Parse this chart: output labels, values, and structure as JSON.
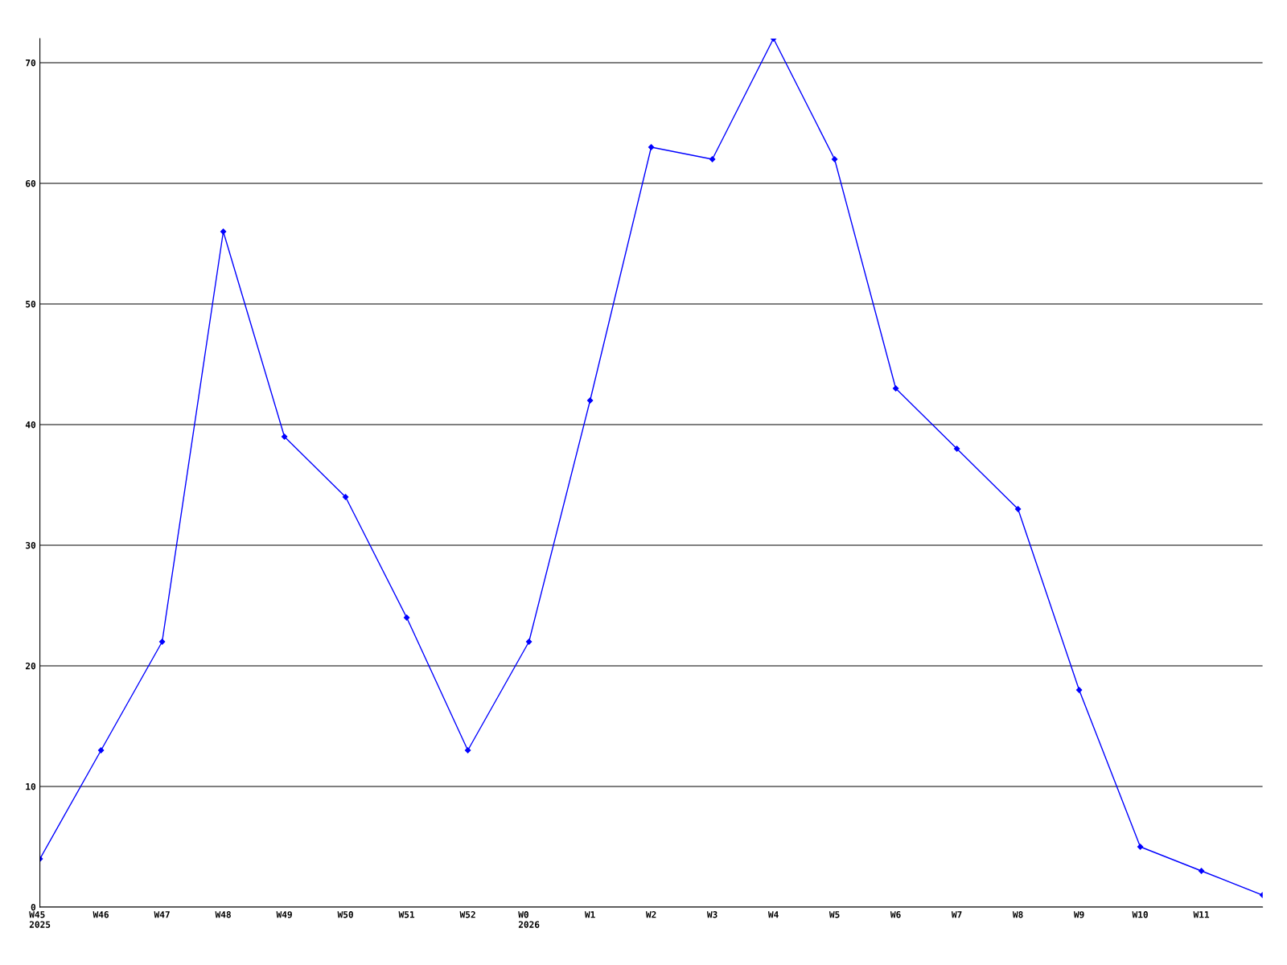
{
  "chart_data": {
    "type": "line",
    "categories": [
      "W45\n2025",
      "W46",
      "W47",
      "W48",
      "W49",
      "W50",
      "W51",
      "W52",
      "W0\n2026",
      "W1",
      "W2",
      "W3",
      "W4",
      "W5",
      "W6",
      "W7",
      "W8",
      "W9",
      "W10",
      "W11",
      null
    ],
    "series": [
      {
        "color": "#0000ff",
        "values": [
          4,
          13,
          22,
          56,
          39,
          34,
          24,
          13,
          22,
          42,
          63,
          62,
          72,
          62,
          43,
          38,
          33,
          18,
          5,
          3,
          1
        ]
      }
    ],
    "ylim": [
      0,
      72
    ],
    "yticks": [
      0,
      10,
      20,
      30,
      40,
      50,
      60,
      70
    ],
    "grid": "y",
    "marker": "diamond",
    "line_style": "solid"
  }
}
